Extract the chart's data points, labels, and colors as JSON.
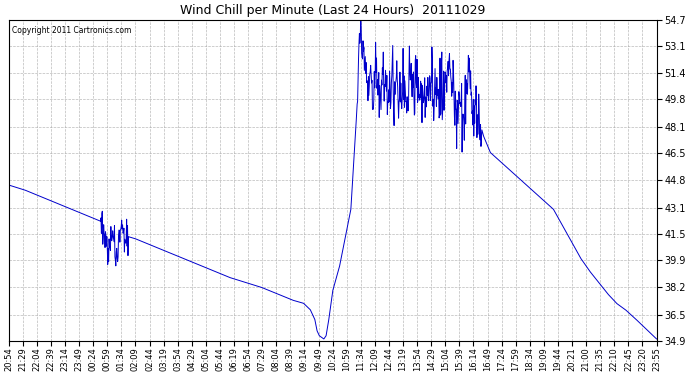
{
  "title": "Wind Chill per Minute (Last 24 Hours)  20111029",
  "copyright_text": "Copyright 2011 Cartronics.com",
  "line_color": "#0000cc",
  "bg_color": "#ffffff",
  "grid_color": "#aaaaaa",
  "ylim": [
    34.9,
    54.7
  ],
  "yticks": [
    34.9,
    36.5,
    38.2,
    39.9,
    41.5,
    43.1,
    44.8,
    46.5,
    48.1,
    49.8,
    51.4,
    53.1,
    54.7
  ],
  "xtick_labels": [
    "20:54",
    "21:29",
    "22:04",
    "22:39",
    "23:14",
    "23:49",
    "00:24",
    "00:59",
    "01:34",
    "02:09",
    "02:44",
    "03:19",
    "03:54",
    "04:29",
    "05:04",
    "05:44",
    "06:19",
    "06:54",
    "07:29",
    "08:04",
    "08:39",
    "09:14",
    "09:49",
    "10:24",
    "10:59",
    "11:34",
    "12:09",
    "12:44",
    "13:19",
    "13:54",
    "14:29",
    "15:04",
    "15:39",
    "16:14",
    "16:49",
    "17:24",
    "17:59",
    "18:34",
    "19:09",
    "19:44",
    "20:21",
    "21:00",
    "21:35",
    "22:10",
    "22:45",
    "23:20",
    "23:55"
  ],
  "figsize": [
    6.9,
    3.75
  ],
  "dpi": 100
}
